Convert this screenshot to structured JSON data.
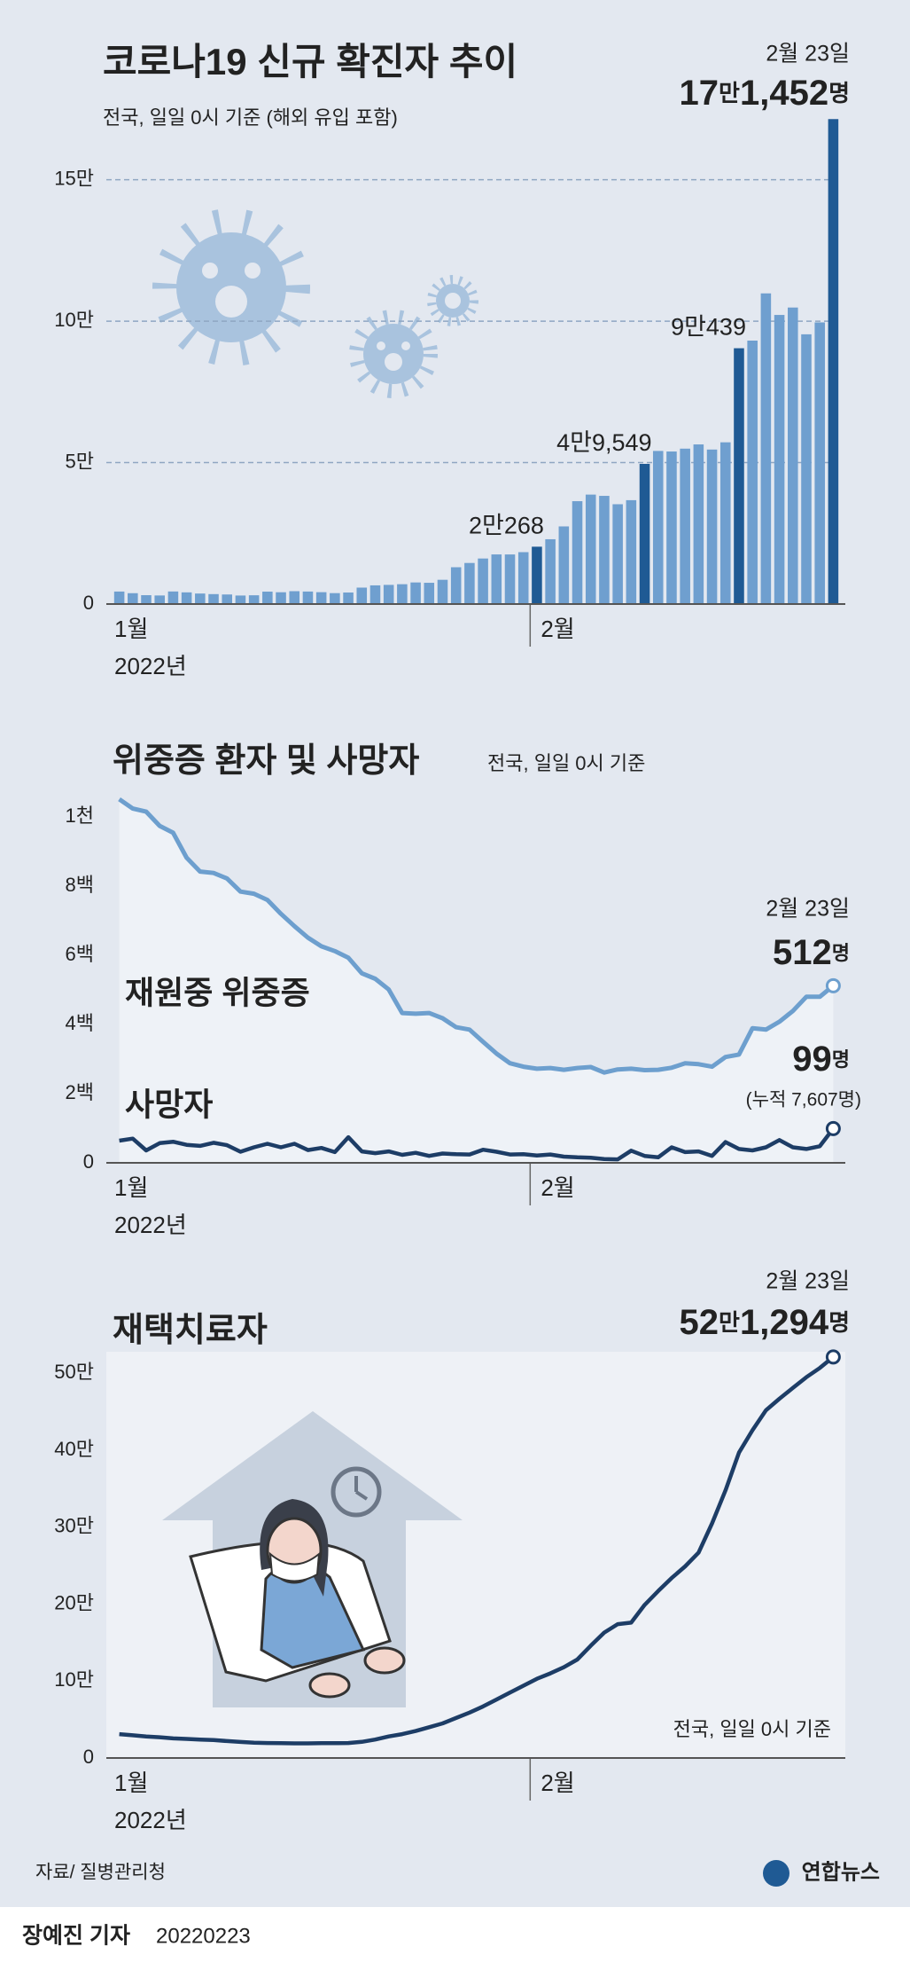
{
  "chart_data": [
    {
      "type": "bar",
      "title": "코로나19 신규 확진자 추이",
      "subtitle": "전국, 일일 0시 기준 (해외 유입 포함)",
      "date_label": "2월 23일",
      "categories": [
        "1월",
        null,
        null,
        null,
        null,
        null,
        null,
        null,
        null,
        null,
        null,
        null,
        null,
        null,
        null,
        null,
        null,
        null,
        null,
        null,
        null,
        null,
        null,
        null,
        null,
        null,
        null,
        null,
        null,
        null,
        null,
        "2월",
        null,
        null,
        null,
        null,
        null,
        null,
        null,
        null,
        null,
        null,
        null,
        null,
        null,
        null,
        null,
        null,
        null,
        null,
        null,
        null,
        null,
        null
      ],
      "year_label": "2022년",
      "values": [
        4416,
        3833,
        3129,
        3022,
        4442,
        4126,
        3713,
        3510,
        3376,
        3005,
        3094,
        4385,
        4167,
        4542,
        4418,
        4193,
        3858,
        4070,
        5805,
        6603,
        6769,
        7009,
        7630,
        7513,
        8571,
        13012,
        14518,
        16096,
        17542,
        17528,
        18343,
        20268,
        22907,
        27443,
        36362,
        38691,
        38245,
        35286,
        36719,
        49549,
        54122,
        53926,
        54941,
        56431,
        54619,
        57177,
        90439,
        93135,
        109831,
        102211,
        104829,
        95362,
        99573,
        171452
      ],
      "value_labels": [
        null,
        null,
        null,
        null,
        null,
        null,
        null,
        null,
        null,
        null,
        null,
        null,
        null,
        null,
        null,
        null,
        null,
        null,
        null,
        null,
        null,
        null,
        null,
        null,
        null,
        null,
        null,
        null,
        null,
        null,
        null,
        "2만268",
        null,
        null,
        null,
        null,
        null,
        null,
        null,
        "4만9,549",
        null,
        null,
        null,
        null,
        null,
        null,
        "9만439",
        null,
        null,
        null,
        null,
        null,
        null,
        "17만1,452명"
      ],
      "color": "#6f9fcf",
      "highlight_color": "#1f5a94",
      "ylim": [
        0,
        180000
      ],
      "yticks": [
        {
          "value": 0,
          "label": "0"
        },
        {
          "value": 50000,
          "label": "5만"
        },
        {
          "value": 100000,
          "label": "10만"
        },
        {
          "value": 150000,
          "label": "15만"
        }
      ],
      "grid": true
    },
    {
      "type": "line",
      "title": "위중증 환자 및 사망자",
      "subtitle": "전국, 일일 0시 기준",
      "date_label": "2월 23일",
      "categories": [
        "1월",
        null,
        null,
        null,
        null,
        null,
        null,
        null,
        null,
        null,
        null,
        null,
        null,
        null,
        null,
        null,
        null,
        null,
        null,
        null,
        null,
        null,
        null,
        null,
        null,
        null,
        null,
        null,
        null,
        null,
        null,
        "2월",
        null,
        null,
        null,
        null,
        null,
        null,
        null,
        null,
        null,
        null,
        null,
        null,
        null,
        null,
        null,
        null,
        null,
        null,
        null,
        null,
        null,
        null
      ],
      "year_label": "2022년",
      "series": [
        {
          "name": "재원중 위중증",
          "color": "#6d9fce",
          "values": [
            1051,
            1024,
            1015,
            974,
            954,
            882,
            842,
            838,
            822,
            784,
            778,
            760,
            720,
            684,
            651,
            626,
            612,
            593,
            548,
            532,
            501,
            433,
            431,
            433,
            418,
            392,
            385,
            350,
            316,
            288,
            278,
            272,
            274,
            269,
            274,
            277,
            261,
            270,
            272,
            268,
            269,
            275,
            288,
            285,
            278,
            306,
            313,
            389,
            385,
            408,
            439,
            480,
            480,
            512
          ],
          "value_labels": [
            null,
            null,
            null,
            null,
            null,
            null,
            null,
            null,
            null,
            null,
            null,
            null,
            null,
            null,
            null,
            null,
            null,
            null,
            null,
            null,
            null,
            null,
            null,
            null,
            null,
            null,
            null,
            null,
            null,
            null,
            null,
            null,
            null,
            null,
            null,
            null,
            null,
            null,
            null,
            null,
            null,
            null,
            null,
            null,
            null,
            null,
            null,
            null,
            null,
            null,
            null,
            null,
            null,
            "512명"
          ]
        },
        {
          "name": "사망자",
          "color": "#1d3d66",
          "values": [
            64,
            70,
            36,
            57,
            61,
            52,
            49,
            58,
            51,
            32,
            45,
            55,
            45,
            55,
            37,
            43,
            31,
            74,
            33,
            28,
            33,
            23,
            29,
            20,
            27,
            25,
            24,
            38,
            32,
            24,
            25,
            21,
            24,
            18,
            16,
            15,
            11,
            10,
            35,
            20,
            16,
            45,
            31,
            33,
            20,
            60,
            40,
            36,
            45,
            66,
            45,
            40,
            48,
            99
          ],
          "value_labels": [
            null,
            null,
            null,
            null,
            null,
            null,
            null,
            null,
            null,
            null,
            null,
            null,
            null,
            null,
            null,
            null,
            null,
            null,
            null,
            null,
            null,
            null,
            null,
            null,
            null,
            null,
            null,
            null,
            null,
            null,
            null,
            null,
            null,
            null,
            null,
            null,
            null,
            null,
            null,
            null,
            null,
            null,
            null,
            null,
            null,
            null,
            null,
            null,
            null,
            null,
            null,
            null,
            null,
            "99명"
          ]
        }
      ],
      "cumulative_label": "(누적 7,607명)",
      "ylim": [
        0,
        1100
      ],
      "yticks": [
        {
          "value": 0,
          "label": "0"
        },
        {
          "value": 200,
          "label": "2백"
        },
        {
          "value": 400,
          "label": "4백"
        },
        {
          "value": 600,
          "label": "6백"
        },
        {
          "value": 800,
          "label": "8백"
        },
        {
          "value": 1000,
          "label": "1천"
        }
      ],
      "grid": false,
      "area": true
    },
    {
      "type": "line",
      "title": "재택치료자",
      "note": "전국, 일일 0시 기준",
      "date_label": "2월 23일",
      "categories": [
        "1월",
        null,
        null,
        null,
        null,
        null,
        null,
        null,
        null,
        null,
        null,
        null,
        null,
        null,
        null,
        null,
        null,
        null,
        null,
        null,
        null,
        null,
        null,
        null,
        null,
        null,
        null,
        null,
        null,
        null,
        null,
        "2월",
        null,
        null,
        null,
        null,
        null,
        null,
        null,
        null,
        null,
        null,
        null,
        null,
        null,
        null,
        null,
        null,
        null,
        null,
        null,
        null,
        null,
        null
      ],
      "year_label": "2022년",
      "series": [
        {
          "color": "#1d3d66",
          "values": [
            31000,
            29500,
            28000,
            27000,
            25500,
            24800,
            24000,
            23300,
            22000,
            20900,
            20000,
            19500,
            19300,
            19000,
            19000,
            19200,
            19300,
            19500,
            21000,
            24000,
            28000,
            31000,
            35000,
            40000,
            45000,
            52000,
            59000,
            67000,
            76000,
            85000,
            94000,
            103000,
            110000,
            118000,
            128000,
            146000,
            163000,
            174000,
            176000,
            199000,
            217000,
            234000,
            249000,
            267000,
            305000,
            348000,
            397000,
            426000,
            452000,
            467000,
            481000,
            495000,
            507000,
            521294
          ],
          "value_labels": [
            null,
            null,
            null,
            null,
            null,
            null,
            null,
            null,
            null,
            null,
            null,
            null,
            null,
            null,
            null,
            null,
            null,
            null,
            null,
            null,
            null,
            null,
            null,
            null,
            null,
            null,
            null,
            null,
            null,
            null,
            null,
            null,
            null,
            null,
            null,
            null,
            null,
            null,
            null,
            null,
            null,
            null,
            null,
            null,
            null,
            null,
            null,
            null,
            null,
            null,
            null,
            null,
            null,
            "52만1,294명"
          ]
        }
      ],
      "ylim": [
        0,
        550000
      ],
      "yticks": [
        {
          "value": 0,
          "label": "0"
        },
        {
          "value": 100000,
          "label": "10만"
        },
        {
          "value": 200000,
          "label": "20만"
        },
        {
          "value": 300000,
          "label": "30만"
        },
        {
          "value": 400000,
          "label": "40만"
        },
        {
          "value": 500000,
          "label": "50만"
        }
      ],
      "grid": false
    }
  ],
  "footer": {
    "source": "자료/ 질병관리청",
    "logo": "연합뉴스",
    "byline": "장예진 기자",
    "date": "20220223"
  }
}
